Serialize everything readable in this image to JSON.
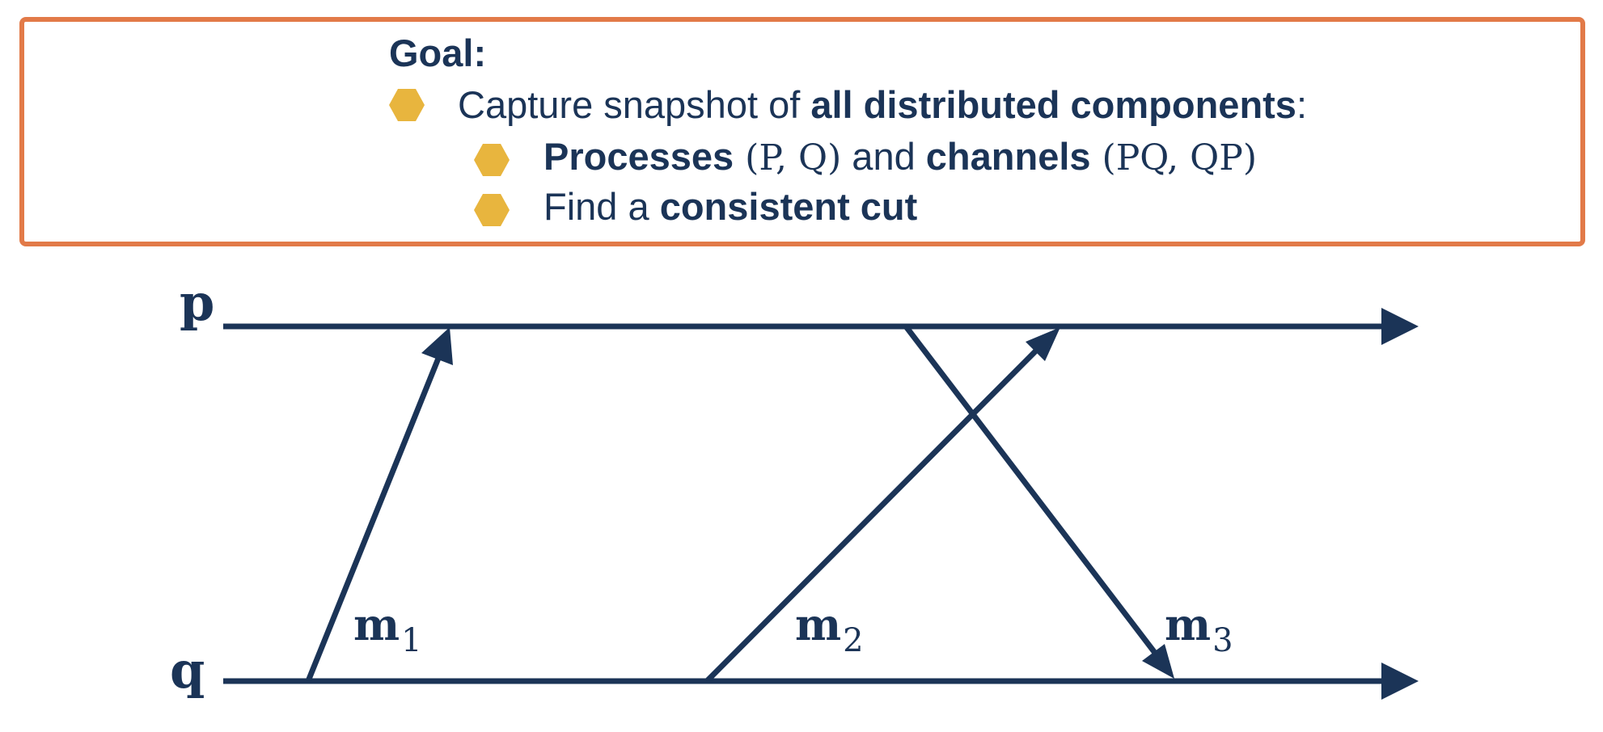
{
  "goal_box": {
    "title": "Goal:",
    "bullet_1": {
      "prefix": "Capture snapshot of ",
      "bold": "all distributed components",
      "suffix": ":"
    },
    "bullet_2": {
      "bold_1": "Processes",
      "serif_1": " (P, Q)",
      "middle": " and ",
      "bold_2": "channels",
      "serif_2": " (PQ, QP)"
    },
    "bullet_3": {
      "prefix": "Find a ",
      "bold": "consistent cut"
    }
  },
  "diagram": {
    "process_p": "p",
    "process_q": "q",
    "messages": [
      {
        "name": "m",
        "sub": "1"
      },
      {
        "name": "m",
        "sub": "2"
      },
      {
        "name": "m",
        "sub": "3"
      }
    ]
  },
  "colors": {
    "text": "#1b3457",
    "line": "#1b3457",
    "border": "#e27a48",
    "bullet": "#e8b53e"
  }
}
